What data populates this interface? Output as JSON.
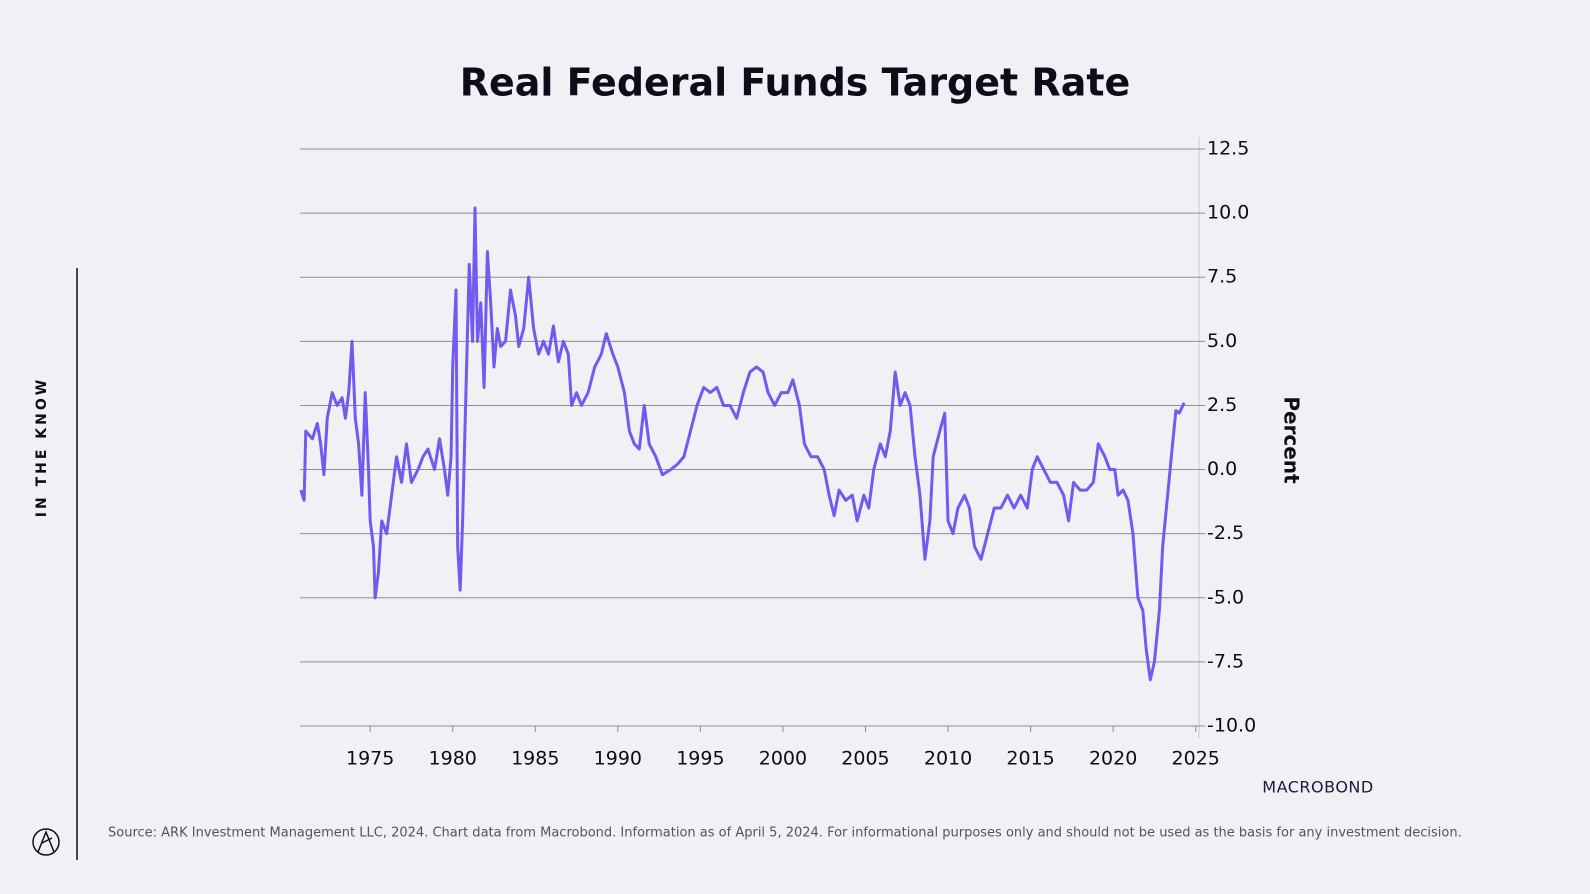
{
  "sidebar_label": "IN THE KNOW",
  "source_note": "Source: ARK Investment Management LLC, 2024. Chart data from Macrobond. Information as of April 5, 2024. For informational purposes only and should not be used as the basis for any investment decision.",
  "brand": "MACROBOND",
  "chart_data": {
    "type": "line",
    "title": "Real Federal Funds Target Rate",
    "y_label": "Percent",
    "color": "#7459f0",
    "grid": true,
    "xlim": [
      1970.75,
      2025.2
    ],
    "xticks": [
      1975,
      1980,
      1985,
      1990,
      1995,
      2000,
      2005,
      2010,
      2015,
      2020,
      2025
    ],
    "ylim": [
      -10,
      12.5
    ],
    "yticks": [
      {
        "value": -10,
        "label": "-10.0"
      },
      -7.5,
      {
        "value": -5,
        "label": "-5.0"
      },
      -2.5,
      {
        "value": 0,
        "label": "0.0"
      },
      2.5,
      {
        "value": 5,
        "label": "5.0"
      },
      7.5,
      {
        "value": 10,
        "label": "10.0"
      },
      12.5
    ],
    "x": [
      1970.8,
      1971,
      1971.1,
      1971.5,
      1971.8,
      1972,
      1972.2,
      1972.4,
      1972.7,
      1973,
      1973.3,
      1973.5,
      1973.7,
      1973.9,
      1974.1,
      1974.3,
      1974.5,
      1974.7,
      1974.9,
      1975,
      1975.2,
      1975.3,
      1975.5,
      1975.7,
      1976,
      1976.3,
      1976.6,
      1976.9,
      1977.2,
      1977.5,
      1977.9,
      1978.2,
      1978.5,
      1978.9,
      1979.2,
      1979.5,
      1979.7,
      1979.9,
      1980,
      1980.2,
      1980.3,
      1980.45,
      1980.6,
      1980.8,
      1981,
      1981.2,
      1981.35,
      1981.5,
      1981.7,
      1981.9,
      1982.1,
      1982.3,
      1982.5,
      1982.7,
      1982.9,
      1983.2,
      1983.5,
      1983.8,
      1984,
      1984.3,
      1984.6,
      1984.9,
      1985.2,
      1985.5,
      1985.8,
      1986.1,
      1986.4,
      1986.7,
      1987,
      1987.2,
      1987.5,
      1987.8,
      1988.2,
      1988.6,
      1989,
      1989.3,
      1989.7,
      1990,
      1990.4,
      1990.7,
      1991,
      1991.3,
      1991.6,
      1991.9,
      1992.3,
      1992.7,
      1993.2,
      1993.6,
      1994,
      1994.4,
      1994.8,
      1995.2,
      1995.6,
      1996,
      1996.4,
      1996.8,
      1997.2,
      1997.6,
      1998,
      1998.4,
      1998.8,
      1999.1,
      1999.5,
      1999.9,
      2000.3,
      2000.6,
      2001,
      2001.3,
      2001.7,
      2002.1,
      2002.5,
      2002.8,
      2003.1,
      2003.4,
      2003.8,
      2004.2,
      2004.5,
      2004.9,
      2005.2,
      2005.5,
      2005.9,
      2006.2,
      2006.5,
      2006.8,
      2007.1,
      2007.4,
      2007.7,
      2008,
      2008.3,
      2008.6,
      2008.9,
      2009.1,
      2009.5,
      2009.8,
      2010,
      2010.3,
      2010.6,
      2011,
      2011.3,
      2011.6,
      2012,
      2012.4,
      2012.8,
      2013.2,
      2013.6,
      2014,
      2014.4,
      2014.8,
      2015.1,
      2015.4,
      2015.8,
      2016.2,
      2016.6,
      2017,
      2017.3,
      2017.6,
      2018,
      2018.4,
      2018.8,
      2019.1,
      2019.5,
      2019.8,
      2020.1,
      2020.3,
      2020.6,
      2020.9,
      2021.2,
      2021.5,
      2021.8,
      2022,
      2022.25,
      2022.5,
      2022.8,
      2023,
      2023.3,
      2023.6,
      2023.8,
      2024,
      2024.3
    ],
    "values": [
      -0.8,
      -1.2,
      1.5,
      1.2,
      1.8,
      1.0,
      -0.2,
      2.0,
      3.0,
      2.5,
      2.8,
      2.0,
      3.0,
      5.0,
      2.0,
      1.0,
      -1.0,
      3.0,
      0.0,
      -2.0,
      -3.0,
      -5.0,
      -4.0,
      -2.0,
      -2.5,
      -1.0,
      0.5,
      -0.5,
      1.0,
      -0.5,
      0.0,
      0.5,
      0.8,
      0.0,
      1.2,
      0.0,
      -1.0,
      0.5,
      4.0,
      7.0,
      -3.0,
      -4.7,
      -2.0,
      3.0,
      8.0,
      5.0,
      10.2,
      5.0,
      6.5,
      3.2,
      8.5,
      6.5,
      4.0,
      5.5,
      4.8,
      5.0,
      7.0,
      6.0,
      4.8,
      5.5,
      7.5,
      5.5,
      4.5,
      5.0,
      4.5,
      5.6,
      4.2,
      5.0,
      4.5,
      2.5,
      3.0,
      2.5,
      3.0,
      4.0,
      4.5,
      5.3,
      4.5,
      4.0,
      3.0,
      1.5,
      1.0,
      0.8,
      2.5,
      1.0,
      0.5,
      -0.2,
      0.0,
      0.2,
      0.5,
      1.5,
      2.5,
      3.2,
      3.0,
      3.2,
      2.5,
      2.5,
      2.0,
      3.0,
      3.8,
      4.0,
      3.8,
      3.0,
      2.5,
      3.0,
      3.0,
      3.5,
      2.5,
      1.0,
      0.5,
      0.5,
      0.0,
      -1.0,
      -1.8,
      -0.8,
      -1.2,
      -1.0,
      -2.0,
      -1.0,
      -1.5,
      0.0,
      1.0,
      0.5,
      1.5,
      3.8,
      2.5,
      3.0,
      2.5,
      0.5,
      -1.0,
      -3.5,
      -2.0,
      0.5,
      1.5,
      2.2,
      -2.0,
      -2.5,
      -1.5,
      -1.0,
      -1.5,
      -3.0,
      -3.5,
      -2.5,
      -1.5,
      -1.5,
      -1.0,
      -1.5,
      -1.0,
      -1.5,
      0.0,
      0.5,
      0.0,
      -0.5,
      -0.5,
      -1.0,
      -2.0,
      -0.5,
      -0.8,
      -0.8,
      -0.5,
      1.0,
      0.5,
      0.0,
      0.0,
      -1.0,
      -0.8,
      -1.2,
      -2.5,
      -5.0,
      -5.5,
      -7.0,
      -8.2,
      -7.5,
      -5.5,
      -3.0,
      -1.0,
      1.0,
      2.3,
      2.2,
      2.6
    ]
  }
}
